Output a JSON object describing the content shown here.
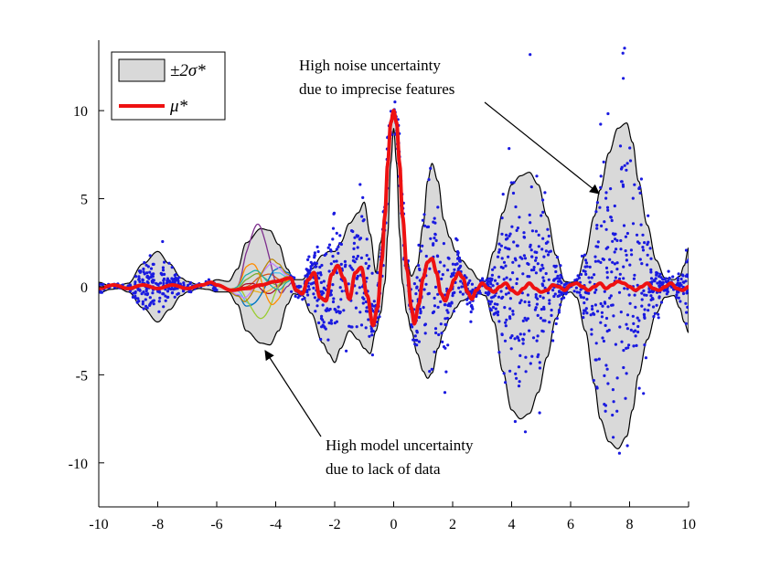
{
  "chart_data": {
    "type": "line",
    "title": "",
    "xlabel": "",
    "ylabel": "",
    "xlim": [
      -10,
      10
    ],
    "ylim": [
      -12.5,
      14
    ],
    "x_ticks": [
      -10,
      -8,
      -6,
      -4,
      -2,
      0,
      2,
      4,
      6,
      8,
      10
    ],
    "x_tick_labels": [
      "-10",
      "-8",
      "-6",
      "-4",
      "-2",
      "0",
      "2",
      "4",
      "6",
      "8",
      "10"
    ],
    "y_ticks": [
      -10,
      -5,
      0,
      5,
      10
    ],
    "y_tick_labels": [
      "-10",
      "-5",
      "0",
      "5",
      "10"
    ],
    "grid": false,
    "legend_position": "top-left",
    "legend": [
      {
        "label": "±2σ*",
        "kind": "band"
      },
      {
        "label": "μ*",
        "kind": "line"
      }
    ],
    "colors": {
      "band_fill": "#d9d9d9",
      "band_edge": "#000000",
      "mean": "#ee1111",
      "points": "#1a1ae0"
    },
    "series": [
      {
        "name": "μ*",
        "x": [
          -10,
          -9.5,
          -9,
          -8.5,
          -8,
          -7.5,
          -7,
          -6.5,
          -6.2,
          -6,
          -5.5,
          -5,
          -4.5,
          -4,
          -3.5,
          -3.3,
          -3.1,
          -2.9,
          -2.7,
          -2.5,
          -2.3,
          -2.1,
          -1.9,
          -1.7,
          -1.5,
          -1.3,
          -1.1,
          -0.9,
          -0.7,
          -0.55,
          -0.4,
          -0.3,
          -0.2,
          -0.1,
          0,
          0.1,
          0.2,
          0.3,
          0.45,
          0.6,
          0.7,
          0.85,
          1.0,
          1.15,
          1.3,
          1.45,
          1.6,
          1.75,
          1.9,
          2.05,
          2.2,
          2.35,
          2.5,
          2.65,
          2.8,
          3.0,
          3.2,
          3.4,
          3.6,
          3.8,
          4.0,
          4.2,
          4.4,
          4.6,
          4.8,
          5.0,
          5.2,
          5.4,
          5.6,
          5.8,
          6.0,
          6.2,
          6.4,
          6.6,
          6.8,
          7.0,
          7.2,
          7.4,
          7.6,
          7.8,
          8.0,
          8.2,
          8.4,
          8.6,
          8.8,
          9.0,
          9.2,
          9.4,
          9.6,
          9.8,
          10
        ],
        "y": [
          -0.1,
          0.1,
          -0.1,
          0.1,
          -0.1,
          0.1,
          -0.1,
          0.1,
          0.25,
          0.1,
          -0.2,
          -0.1,
          0.1,
          0.3,
          0.5,
          -0.2,
          -0.4,
          0.4,
          0.8,
          -0.6,
          -0.8,
          0.7,
          1.2,
          0.5,
          -0.7,
          0.8,
          1.1,
          -0.5,
          -2.2,
          -1.2,
          1.5,
          4.0,
          7.0,
          9.3,
          10.0,
          9.3,
          7.0,
          4.0,
          1.0,
          -1.2,
          -2.1,
          -1.0,
          0.5,
          1.4,
          1.6,
          0.8,
          -0.4,
          -0.8,
          -0.2,
          0.4,
          0.8,
          0.5,
          -0.3,
          -0.7,
          -0.2,
          0.2,
          -0.1,
          -0.3,
          0.0,
          0.2,
          -0.2,
          -0.4,
          -0.1,
          0.2,
          -0.1,
          -0.3,
          -0.2,
          0.1,
          0.0,
          -0.2,
          0.1,
          0.2,
          0.0,
          -0.2,
          0.0,
          0.2,
          -0.1,
          0.1,
          0.3,
          0.2,
          0.0,
          -0.2,
          0.0,
          0.2,
          -0.1,
          -0.2,
          0.0,
          0.2,
          -0.1,
          -0.2,
          0.0
        ]
      },
      {
        "name": "+2σ*",
        "x": [
          -10,
          -9.6,
          -9.3,
          -9,
          -8.5,
          -8,
          -7.6,
          -7.2,
          -7,
          -6.6,
          -6.3,
          -6,
          -5.6,
          -5.3,
          -5,
          -4.5,
          -4.2,
          -3.9,
          -3.6,
          -3.4,
          -3.1,
          -2.8,
          -2.4,
          -2.2,
          -2.0,
          -1.8,
          -1.5,
          -1.2,
          -1.0,
          -0.8,
          -0.6,
          -0.45,
          -0.3,
          -0.2,
          -0.1,
          0,
          0.1,
          0.2,
          0.3,
          0.45,
          0.6,
          0.8,
          1.0,
          1.15,
          1.3,
          1.5,
          1.7,
          1.9,
          2.1,
          2.3,
          2.6,
          2.9,
          3.1,
          3.4,
          3.7,
          4.0,
          4.3,
          4.6,
          4.9,
          5.2,
          5.5,
          5.8,
          6.0,
          6.2,
          6.5,
          6.8,
          7.0,
          7.3,
          7.6,
          7.9,
          8.1,
          8.3,
          8.6,
          8.9,
          9.2,
          9.5,
          9.7,
          9.85,
          10
        ],
        "y": [
          0.25,
          0.05,
          0.1,
          0.2,
          1.3,
          2.0,
          1.3,
          0.5,
          0.3,
          0.1,
          0.2,
          0.4,
          0.3,
          1.0,
          2.5,
          3.3,
          3.2,
          2.4,
          1.0,
          0.4,
          0.4,
          1.0,
          1.8,
          2.0,
          2.0,
          2.5,
          3.6,
          4.2,
          4.8,
          3.0,
          0.8,
          2.5,
          4.0,
          7.0,
          9.3,
          10.0,
          9.3,
          7.0,
          4.0,
          1.5,
          0.6,
          1.2,
          3.5,
          6.0,
          7.0,
          6.0,
          3.8,
          2.8,
          2.0,
          1.5,
          1.0,
          0.4,
          0.3,
          2.0,
          4.2,
          5.8,
          6.3,
          6.5,
          5.8,
          4.0,
          1.8,
          0.3,
          0.25,
          0.3,
          1.8,
          4.0,
          5.5,
          7.6,
          9.0,
          9.3,
          8.2,
          6.0,
          3.5,
          1.5,
          0.5,
          0.4,
          0.6,
          1.2,
          2.2
        ]
      },
      {
        "name": "-2σ*",
        "x": [
          -10,
          -9.6,
          -9.3,
          -9,
          -8.5,
          -8,
          -7.6,
          -7.2,
          -7,
          -6.6,
          -6.3,
          -6,
          -5.6,
          -5.3,
          -5,
          -4.5,
          -4.2,
          -3.9,
          -3.6,
          -3.4,
          -3.1,
          -2.8,
          -2.4,
          -2.2,
          -2.0,
          -1.8,
          -1.5,
          -1.2,
          -1.0,
          -0.8,
          -0.6,
          -0.45,
          -0.3,
          -0.2,
          -0.1,
          0,
          0.1,
          0.2,
          0.3,
          0.45,
          0.6,
          0.8,
          1.0,
          1.15,
          1.3,
          1.5,
          1.7,
          1.9,
          2.1,
          2.3,
          2.6,
          2.9,
          3.1,
          3.4,
          3.7,
          4.0,
          4.3,
          4.6,
          4.9,
          5.2,
          5.5,
          5.8,
          6.0,
          6.2,
          6.5,
          6.8,
          7.0,
          7.3,
          7.6,
          7.9,
          8.1,
          8.3,
          8.6,
          8.9,
          9.2,
          9.5,
          9.7,
          9.85,
          10
        ],
        "y": [
          -0.35,
          -0.15,
          -0.1,
          -0.3,
          -1.2,
          -2.0,
          -1.3,
          -0.5,
          -0.3,
          -0.1,
          -0.15,
          -0.3,
          -0.3,
          -1.0,
          -2.5,
          -3.2,
          -3.3,
          -2.5,
          -1.0,
          -0.4,
          -0.5,
          -1.5,
          -3.2,
          -3.8,
          -4.3,
          -3.5,
          -2.5,
          -3.0,
          -3.5,
          -3.8,
          -2.5,
          -1.5,
          0.2,
          3.0,
          7.0,
          9.0,
          7.0,
          3.0,
          0.2,
          -1.5,
          -2.5,
          -3.8,
          -4.8,
          -5.2,
          -4.9,
          -3.5,
          -2.5,
          -1.8,
          -1.2,
          -0.8,
          -0.6,
          -0.4,
          -0.5,
          -2.0,
          -4.8,
          -7.0,
          -7.5,
          -7.2,
          -6.0,
          -4.0,
          -1.8,
          -0.4,
          -0.3,
          -0.6,
          -2.5,
          -5.5,
          -7.5,
          -8.8,
          -9.2,
          -8.5,
          -7.0,
          -5.0,
          -3.0,
          -1.5,
          -0.6,
          -0.5,
          -1.2,
          -2.0,
          -2.6
        ]
      }
    ],
    "sample_curves_x_range": [
      -6,
      -3
    ],
    "scatter_note": "dense noisy observations inside the band for x in [-10,-6] and [-3.5,10]; none for x in [-6,-3.5]",
    "annotations": [
      {
        "lines": [
          "High noise uncertainty",
          "due to imprecise features"
        ],
        "points_to": [
          7.1,
          5.6
        ]
      },
      {
        "lines": [
          "High model uncertainty",
          "due to lack of data"
        ],
        "points_to": [
          -4.3,
          -3.4
        ]
      }
    ]
  }
}
